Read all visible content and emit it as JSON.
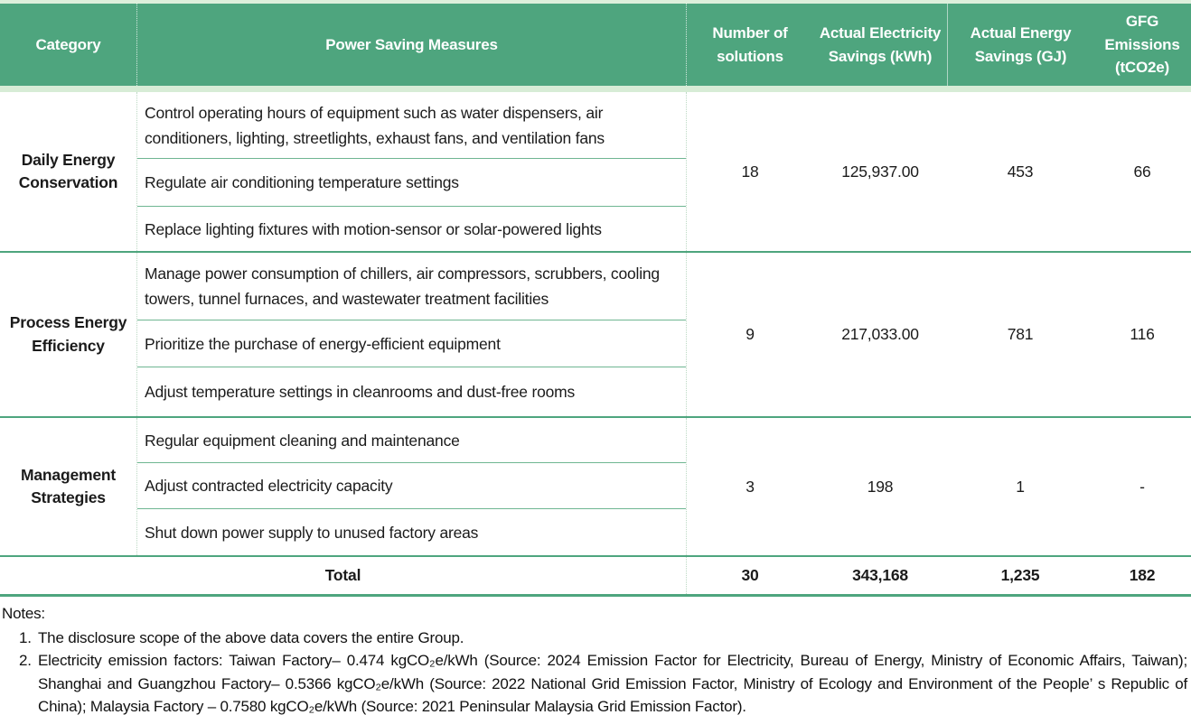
{
  "table": {
    "columns": [
      "Category",
      "Power Saving Measures",
      "Number of solutions",
      "Actual Electricity Savings (kWh)",
      "Actual Energy Savings (GJ)",
      "GFG Emissions (tCO2e)"
    ],
    "groups": [
      {
        "category": "Daily Energy Conservation",
        "measures": [
          "Control operating hours of equipment such as water dispensers, air conditioners, lighting, streetlights, exhaust fans, and ventilation fans",
          "Regulate air conditioning temperature settings",
          "Replace lighting fixtures with motion-sensor or solar-powered lights"
        ],
        "values": [
          "18",
          "125,937.00",
          "453",
          "66"
        ]
      },
      {
        "category": "Process Energy Efficiency",
        "measures": [
          "Manage power consumption of chillers, air compressors, scrubbers, cooling towers, tunnel furnaces, and wastewater treatment facilities",
          "Prioritize the purchase of energy-efficient equipment",
          "Adjust temperature settings in cleanrooms and dust-free rooms"
        ],
        "values": [
          "9",
          "217,033.00",
          "781",
          "116"
        ]
      },
      {
        "category": "Management Strategies",
        "measures": [
          "Regular equipment cleaning and maintenance",
          "Adjust contracted electricity capacity",
          "Shut down power supply to unused factory areas"
        ],
        "values": [
          "3",
          "198",
          "1",
          "-"
        ]
      }
    ],
    "total": {
      "label": "Total",
      "values": [
        "30",
        "343,168",
        "1,235",
        "182"
      ]
    }
  },
  "notes": {
    "heading": "Notes:",
    "items": [
      {
        "number": "1.",
        "text": "The disclosure scope of the above data covers the entire Group."
      },
      {
        "number": "2.",
        "text": "Electricity emission factors: Taiwan Factory– 0.474 kgCO₂e/kWh (Source: 2024 Emission Factor for Electricity, Bureau of Energy, Ministry of Economic Affairs, Taiwan); Shanghai and Guangzhou Factory– 0.5366 kgCO₂e/kWh (Source: 2022 National Grid Emission Factor, Ministry of Ecology and Environment of the People’ s Republic of China); Malaysia Factory – 0.7580 kgCO₂e/kWh (Source: 2021 Peninsular Malaysia Grid Emission Factor)."
      }
    ]
  },
  "colors": {
    "header_green": "#4ea57e",
    "light_green_band": "#d7ecd6",
    "thin_row_line_green": "#6fb692",
    "group_separator_green": "#4ea57e",
    "header_text": "#ffffff",
    "body_text": "#1b1b1b"
  }
}
